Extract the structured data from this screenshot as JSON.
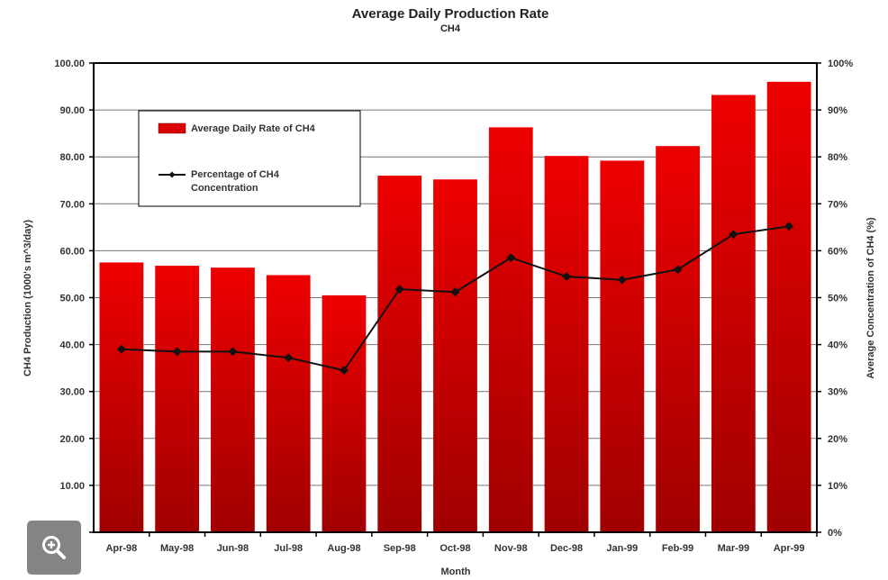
{
  "chart_data": {
    "type": "bar",
    "title": "Average Daily Production Rate",
    "subtitle": "CH4",
    "xlabel": "Month",
    "ylabel": "CH4 Production (1000's m^3/day)",
    "y2label": "Average Concentration of CH4 (%)",
    "categories": [
      "Apr-98",
      "May-98",
      "Jun-98",
      "Jul-98",
      "Aug-98",
      "Sep-98",
      "Oct-98",
      "Nov-98",
      "Dec-98",
      "Jan-99",
      "Feb-99",
      "Mar-99",
      "Apr-99"
    ],
    "ylim": [
      0,
      100
    ],
    "y2lim": [
      0,
      100
    ],
    "yticks": [
      "",
      "10.00",
      "20.00",
      "30.00",
      "40.00",
      "50.00",
      "60.00",
      "70.00",
      "80.00",
      "90.00",
      "100.00"
    ],
    "y2ticks": [
      "0%",
      "10%",
      "20%",
      "30%",
      "40%",
      "50%",
      "60%",
      "70%",
      "80%",
      "90%",
      "100%"
    ],
    "grid": true,
    "legend_position": "top-left",
    "series": [
      {
        "name": "Average Daily Rate of CH4",
        "type": "bar",
        "axis": "left",
        "color": "#dd0000",
        "values": [
          57.5,
          56.8,
          56.4,
          54.8,
          50.5,
          76.0,
          75.2,
          86.3,
          80.2,
          79.2,
          82.3,
          93.2,
          96.0
        ]
      },
      {
        "name": "Percentage of CH4\nConcentration",
        "type": "line",
        "axis": "right",
        "color": "#111111",
        "values": [
          39.0,
          38.5,
          38.5,
          37.2,
          34.5,
          51.8,
          51.2,
          58.5,
          54.5,
          53.8,
          56.0,
          63.5,
          65.2
        ]
      }
    ]
  },
  "ui": {
    "zoom_icon": "zoom-in-icon"
  }
}
